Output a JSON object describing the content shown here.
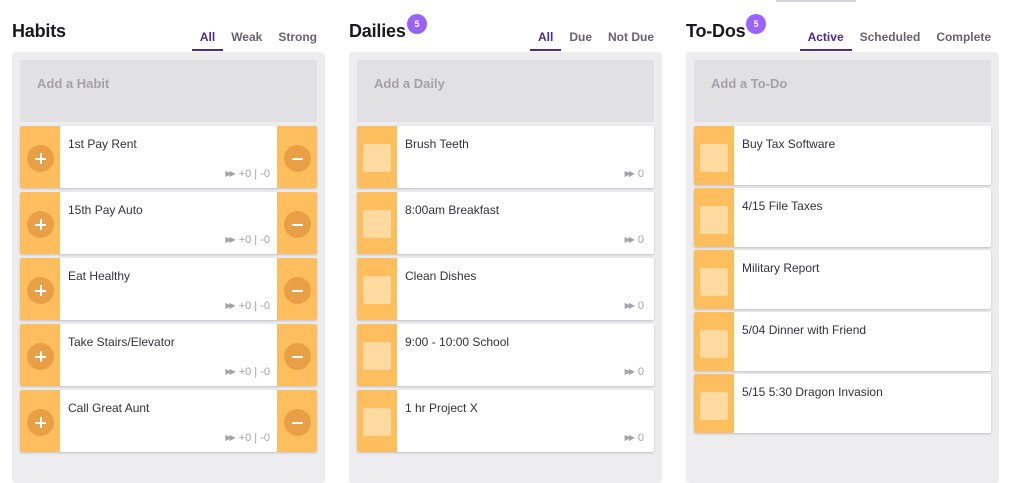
{
  "habits": {
    "title": "Habits",
    "tabs": [
      "All",
      "Weak",
      "Strong"
    ],
    "add_placeholder": "Add a Habit",
    "items": [
      {
        "title": "1st Pay Rent",
        "stats": "+0 | -0"
      },
      {
        "title": "15th Pay Auto",
        "stats": "+0 | -0"
      },
      {
        "title": "Eat Healthy",
        "stats": "+0 | -0"
      },
      {
        "title": "Take Stairs/Elevator",
        "stats": "+0 | -0"
      },
      {
        "title": "Call Great Aunt",
        "stats": "+0 | -0"
      }
    ]
  },
  "dailies": {
    "title": "Dailies",
    "badge": "5",
    "tabs": [
      "All",
      "Due",
      "Not Due"
    ],
    "add_placeholder": "Add a Daily",
    "items": [
      {
        "title": "Brush Teeth",
        "streak": "0"
      },
      {
        "title": "8:00am Breakfast",
        "streak": "0"
      },
      {
        "title": "Clean Dishes",
        "streak": "0"
      },
      {
        "title": "9:00 - 10:00 School",
        "streak": "0"
      },
      {
        "title": "1 hr Project X",
        "streak": "0"
      }
    ]
  },
  "todos": {
    "title": "To-Dos",
    "badge": "5",
    "tabs": [
      "Active",
      "Scheduled",
      "Complete"
    ],
    "add_placeholder": "Add a To-Do",
    "items": [
      {
        "title": "Buy Tax Software"
      },
      {
        "title": "4/15 File Taxes"
      },
      {
        "title": "Military Report"
      },
      {
        "title": "5/04 Dinner with Friend"
      },
      {
        "title": "5/15 5:30 Dragon Invasion"
      }
    ]
  },
  "icons": {
    "streak": "double-arrow-icon",
    "habit_up": "plus-icon",
    "habit_down": "minus-icon",
    "checkbox": "checkbox-icon"
  },
  "colors": {
    "task_side": "#ffbe5d",
    "habit_button": "#e99f46",
    "checkbox": "#ffdaa0",
    "active_tab": "#4f2a93",
    "badge": "#9a62ff",
    "column_bg": "#edecee"
  }
}
